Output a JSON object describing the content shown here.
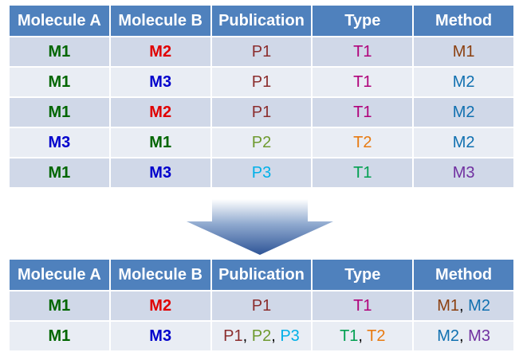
{
  "colors": {
    "header_bg": "#4f81bd",
    "row_dark": "#d0d8e8",
    "row_light": "#e9edf4",
    "green": "#006600",
    "red": "#e00000",
    "blue": "#0000cc",
    "maroon": "#8b2d2d",
    "olive": "#6e9a2f",
    "sky": "#00b0e8",
    "magenta": "#b0007a",
    "teal": "#00a050",
    "orange": "#e87a10",
    "brown": "#8b4010",
    "steel": "#1070b0",
    "purple": "#7030a0"
  },
  "top_table": {
    "headers": [
      "Molecule A",
      "Molecule B",
      "Publication",
      "Type",
      "Method"
    ],
    "rows": [
      {
        "a": "M1",
        "b": "M2",
        "pub": "P1",
        "type": "T1",
        "method": "M1"
      },
      {
        "a": "M1",
        "b": "M3",
        "pub": "P1",
        "type": "T1",
        "method": "M2"
      },
      {
        "a": "M1",
        "b": "M2",
        "pub": "P1",
        "type": "T1",
        "method": "M2"
      },
      {
        "a": "M3",
        "b": "M1",
        "pub": "P2",
        "type": "T2",
        "method": "M2"
      },
      {
        "a": "M1",
        "b": "M3",
        "pub": "P3",
        "type": "T1",
        "method": "M3"
      }
    ]
  },
  "bottom_table": {
    "headers": [
      "Molecule A",
      "Molecule B",
      "Publication",
      "Type",
      "Method"
    ],
    "rows": [
      {
        "a": "M1",
        "b": "M2",
        "pub": [
          "P1"
        ],
        "type": [
          "T1"
        ],
        "method": [
          "M1",
          "M2"
        ]
      },
      {
        "a": "M1",
        "b": "M3",
        "pub": [
          "P1",
          "P2",
          "P3"
        ],
        "type": [
          "T1",
          "T2"
        ],
        "method": [
          "M2",
          "M3"
        ]
      }
    ]
  },
  "separator": ", ",
  "arrow": {
    "icon": "down-arrow-icon"
  }
}
